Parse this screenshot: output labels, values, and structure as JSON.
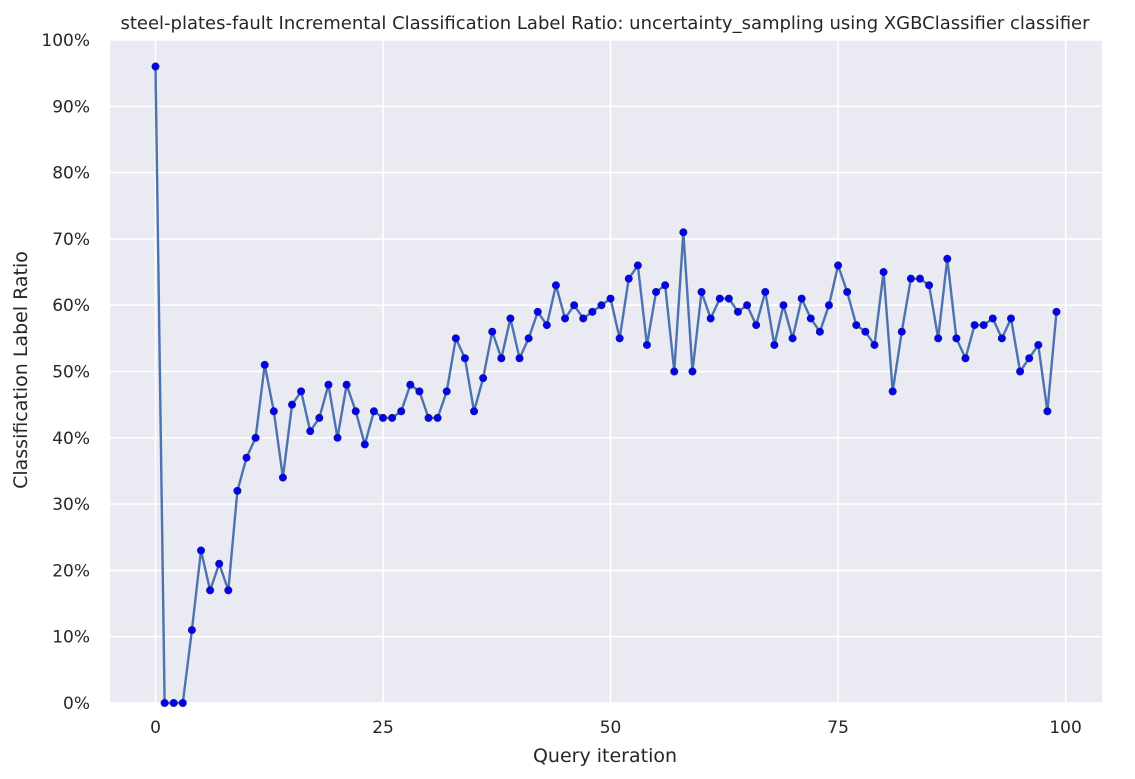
{
  "chart_data": {
    "type": "line",
    "title": "steel-plates-fault Incremental Classification Label Ratio: uncertainty_sampling using XGBClassifier classifier",
    "xlabel": "Query iteration",
    "ylabel": "Classification Label Ratio",
    "xlim": [
      -5,
      104
    ],
    "ylim": [
      0,
      1
    ],
    "xticks": [
      0,
      25,
      50,
      75,
      100
    ],
    "xtick_labels": [
      "0",
      "25",
      "50",
      "75",
      "100"
    ],
    "yticks": [
      0,
      0.1,
      0.2,
      0.3,
      0.4,
      0.5,
      0.6,
      0.7,
      0.8,
      0.9,
      1.0
    ],
    "ytick_labels": [
      "0%",
      "10%",
      "20%",
      "30%",
      "40%",
      "50%",
      "60%",
      "70%",
      "80%",
      "90%",
      "100%"
    ],
    "grid": true,
    "colors": {
      "background": "#eaeaf2",
      "grid": "#ffffff",
      "line": "#4c72b0",
      "marker": "#0000ff"
    },
    "series": [
      {
        "x": [
          0,
          1,
          2,
          3,
          4,
          5,
          6,
          7,
          8,
          9,
          10,
          11,
          12,
          13,
          14,
          15,
          16,
          17,
          18,
          19,
          20,
          21,
          22,
          23,
          24,
          25,
          26,
          27,
          28,
          29,
          30,
          31,
          32,
          33,
          34,
          35,
          36,
          37,
          38,
          39,
          40,
          41,
          42,
          43,
          44,
          45,
          46,
          47,
          48,
          49,
          50,
          51,
          52,
          53,
          54,
          55,
          56,
          57,
          58,
          59,
          60,
          61,
          62,
          63,
          64,
          65,
          66,
          67,
          68,
          69,
          70,
          71,
          72,
          73,
          74,
          75,
          76,
          77,
          78,
          79,
          80,
          81,
          82,
          83,
          84,
          85,
          86,
          87,
          88,
          89,
          90,
          91,
          92,
          93,
          94,
          95,
          96,
          97,
          98,
          99
        ],
        "values": [
          0.96,
          0,
          0,
          0,
          0.11,
          0.23,
          0.17,
          0.21,
          0.17,
          0.32,
          0.37,
          0.4,
          0.51,
          0.44,
          0.34,
          0.45,
          0.47,
          0.41,
          0.43,
          0.48,
          0.4,
          0.48,
          0.44,
          0.39,
          0.44,
          0.43,
          0.43,
          0.44,
          0.48,
          0.47,
          0.43,
          0.43,
          0.47,
          0.55,
          0.52,
          0.44,
          0.49,
          0.56,
          0.52,
          0.58,
          0.52,
          0.55,
          0.59,
          0.57,
          0.63,
          0.58,
          0.6,
          0.58,
          0.59,
          0.6,
          0.61,
          0.55,
          0.64,
          0.66,
          0.54,
          0.62,
          0.63,
          0.5,
          0.71,
          0.5,
          0.62,
          0.58,
          0.61,
          0.61,
          0.59,
          0.6,
          0.57,
          0.62,
          0.54,
          0.6,
          0.55,
          0.61,
          0.58,
          0.56,
          0.6,
          0.66,
          0.62,
          0.57,
          0.56,
          0.54,
          0.65,
          0.47,
          0.56,
          0.64,
          0.64,
          0.63,
          0.55,
          0.67,
          0.55,
          0.52,
          0.57,
          0.57,
          0.58,
          0.55,
          0.58,
          0.5,
          0.52,
          0.54,
          0.44,
          0.59
        ]
      }
    ]
  }
}
